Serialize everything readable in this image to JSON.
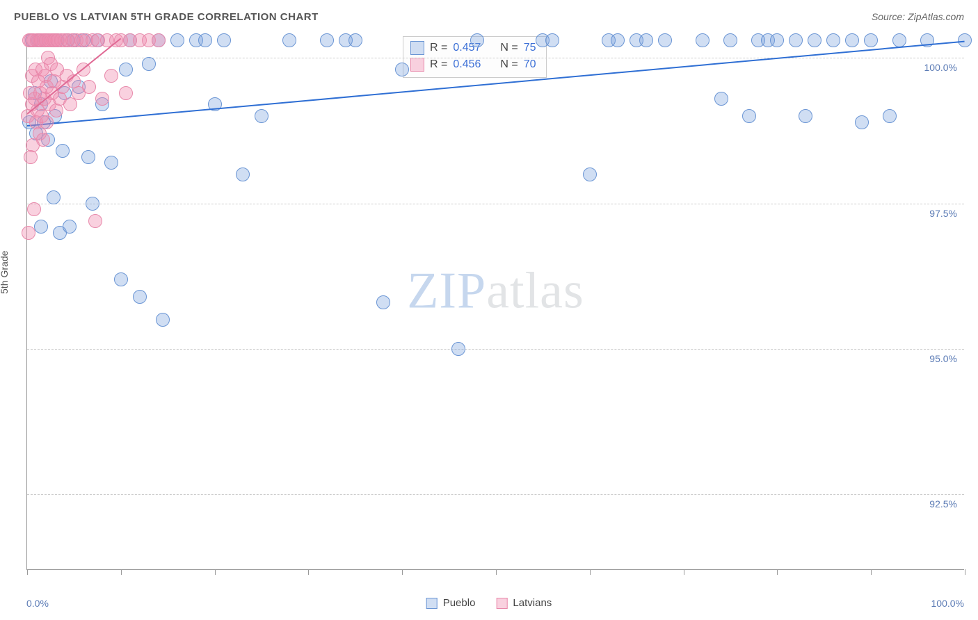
{
  "title": "PUEBLO VS LATVIAN 5TH GRADE CORRELATION CHART",
  "source": "Source: ZipAtlas.com",
  "ylabel": "5th Grade",
  "watermark_zip": "ZIP",
  "watermark_atlas": "atlas",
  "chart": {
    "type": "scatter",
    "background_color": "#ffffff",
    "grid_color": "#cccccc",
    "grid_dash": true,
    "axis_color": "#999999",
    "text_color": "#555555",
    "value_color": "#5b7bb5",
    "xlim": [
      0,
      100
    ],
    "ylim": [
      91.2,
      100.4
    ],
    "x_tick_positions": [
      0,
      10,
      20,
      30,
      40,
      50,
      60,
      70,
      80,
      90,
      100
    ],
    "x_min_label": "0.0%",
    "x_max_label": "100.0%",
    "y_ticks": [
      {
        "v": 92.5,
        "label": "92.5%"
      },
      {
        "v": 95.0,
        "label": "95.0%"
      },
      {
        "v": 97.5,
        "label": "97.5%"
      },
      {
        "v": 100.0,
        "label": "100.0%"
      }
    ],
    "series": [
      {
        "name": "Pueblo",
        "fill": "rgba(120,160,220,0.35)",
        "stroke": "#6a95d4",
        "marker_radius": 10,
        "trend": {
          "x1": 0,
          "y1": 98.85,
          "x2": 100,
          "y2": 100.3,
          "color": "#2f6fd4",
          "width": 2
        },
        "R": "0.457",
        "N": "75",
        "points": [
          [
            0.2,
            98.9
          ],
          [
            0.5,
            100.3
          ],
          [
            0.8,
            99.4
          ],
          [
            1.0,
            98.7
          ],
          [
            1.2,
            100.3
          ],
          [
            1.5,
            99.2
          ],
          [
            1.5,
            97.1
          ],
          [
            1.8,
            98.9
          ],
          [
            2.0,
            100.3
          ],
          [
            2.2,
            98.6
          ],
          [
            2.5,
            99.6
          ],
          [
            2.8,
            97.6
          ],
          [
            3.0,
            99.0
          ],
          [
            3.2,
            100.3
          ],
          [
            3.5,
            97.0
          ],
          [
            3.8,
            98.4
          ],
          [
            4.0,
            99.4
          ],
          [
            4.3,
            100.3
          ],
          [
            4.5,
            97.1
          ],
          [
            5.0,
            100.3
          ],
          [
            5.5,
            99.5
          ],
          [
            6.0,
            100.3
          ],
          [
            6.5,
            98.3
          ],
          [
            7.0,
            97.5
          ],
          [
            7.5,
            100.3
          ],
          [
            8.0,
            99.2
          ],
          [
            9.0,
            98.2
          ],
          [
            10.0,
            96.2
          ],
          [
            10.5,
            99.8
          ],
          [
            11.0,
            100.3
          ],
          [
            12.0,
            95.9
          ],
          [
            13.0,
            99.9
          ],
          [
            14.0,
            100.3
          ],
          [
            14.5,
            95.5
          ],
          [
            16.0,
            100.3
          ],
          [
            18.0,
            100.3
          ],
          [
            19.0,
            100.3
          ],
          [
            20.0,
            99.2
          ],
          [
            21.0,
            100.3
          ],
          [
            23.0,
            98.0
          ],
          [
            25.0,
            99.0
          ],
          [
            28.0,
            100.3
          ],
          [
            32.0,
            100.3
          ],
          [
            34.0,
            100.3
          ],
          [
            35.0,
            100.3
          ],
          [
            38.0,
            95.8
          ],
          [
            40.0,
            99.8
          ],
          [
            46.0,
            95.0
          ],
          [
            48.0,
            100.3
          ],
          [
            55.0,
            100.3
          ],
          [
            56.0,
            100.3
          ],
          [
            60.0,
            98.0
          ],
          [
            62.0,
            100.3
          ],
          [
            63.0,
            100.3
          ],
          [
            65.0,
            100.3
          ],
          [
            66.0,
            100.3
          ],
          [
            68.0,
            100.3
          ],
          [
            72.0,
            100.3
          ],
          [
            74.0,
            99.3
          ],
          [
            75.0,
            100.3
          ],
          [
            77.0,
            99.0
          ],
          [
            78.0,
            100.3
          ],
          [
            79.0,
            100.3
          ],
          [
            80.0,
            100.3
          ],
          [
            82.0,
            100.3
          ],
          [
            83.0,
            99.0
          ],
          [
            84.0,
            100.3
          ],
          [
            86.0,
            100.3
          ],
          [
            88.0,
            100.3
          ],
          [
            89.0,
            98.9
          ],
          [
            90.0,
            100.3
          ],
          [
            92.0,
            99.0
          ],
          [
            93.0,
            100.3
          ],
          [
            96.0,
            100.3
          ],
          [
            100.0,
            100.3
          ]
        ]
      },
      {
        "name": "Latvians",
        "fill": "rgba(240,140,175,0.40)",
        "stroke": "#e889ab",
        "marker_radius": 10,
        "trend": {
          "x1": 0,
          "y1": 99.05,
          "x2": 10,
          "y2": 100.35,
          "color": "#e06a95",
          "width": 2
        },
        "R": "0.456",
        "N": "70",
        "points": [
          [
            0.1,
            99.0
          ],
          [
            0.15,
            97.0
          ],
          [
            0.2,
            100.3
          ],
          [
            0.3,
            99.4
          ],
          [
            0.35,
            98.3
          ],
          [
            0.4,
            100.3
          ],
          [
            0.5,
            99.2
          ],
          [
            0.55,
            99.7
          ],
          [
            0.6,
            98.5
          ],
          [
            0.7,
            100.3
          ],
          [
            0.75,
            97.4
          ],
          [
            0.8,
            99.3
          ],
          [
            0.9,
            99.8
          ],
          [
            1.0,
            98.9
          ],
          [
            1.05,
            100.3
          ],
          [
            1.1,
            99.1
          ],
          [
            1.2,
            99.6
          ],
          [
            1.3,
            100.3
          ],
          [
            1.35,
            98.7
          ],
          [
            1.4,
            99.4
          ],
          [
            1.5,
            100.3
          ],
          [
            1.55,
            99.0
          ],
          [
            1.6,
            99.8
          ],
          [
            1.7,
            98.6
          ],
          [
            1.8,
            100.3
          ],
          [
            1.85,
            99.3
          ],
          [
            1.9,
            99.7
          ],
          [
            2.0,
            100.3
          ],
          [
            2.05,
            98.9
          ],
          [
            2.1,
            99.5
          ],
          [
            2.2,
            100.0
          ],
          [
            2.3,
            100.3
          ],
          [
            2.4,
            99.2
          ],
          [
            2.5,
            99.9
          ],
          [
            2.6,
            100.3
          ],
          [
            2.7,
            99.4
          ],
          [
            2.8,
            100.3
          ],
          [
            2.9,
            99.6
          ],
          [
            3.0,
            100.3
          ],
          [
            3.1,
            99.1
          ],
          [
            3.2,
            99.8
          ],
          [
            3.3,
            100.3
          ],
          [
            3.5,
            99.3
          ],
          [
            3.6,
            100.3
          ],
          [
            3.8,
            99.5
          ],
          [
            4.0,
            100.3
          ],
          [
            4.2,
            99.7
          ],
          [
            4.4,
            100.3
          ],
          [
            4.6,
            99.2
          ],
          [
            4.8,
            100.3
          ],
          [
            5.0,
            99.6
          ],
          [
            5.3,
            100.3
          ],
          [
            5.5,
            99.4
          ],
          [
            5.8,
            100.3
          ],
          [
            6.0,
            99.8
          ],
          [
            6.3,
            100.3
          ],
          [
            6.6,
            99.5
          ],
          [
            7.0,
            100.3
          ],
          [
            7.3,
            97.2
          ],
          [
            7.6,
            100.3
          ],
          [
            8.0,
            99.3
          ],
          [
            8.5,
            100.3
          ],
          [
            9.0,
            99.7
          ],
          [
            9.5,
            100.3
          ],
          [
            10.0,
            100.3
          ],
          [
            10.5,
            99.4
          ],
          [
            11.0,
            100.3
          ],
          [
            12.0,
            100.3
          ],
          [
            13.0,
            100.3
          ],
          [
            14.0,
            100.3
          ]
        ]
      }
    ],
    "legend_labels": {
      "r": "R =",
      "n": "N ="
    },
    "bottom_legend": [
      {
        "label": "Pueblo",
        "fill": "rgba(120,160,220,0.35)",
        "stroke": "#6a95d4"
      },
      {
        "label": "Latvians",
        "fill": "rgba(240,140,175,0.40)",
        "stroke": "#e889ab"
      }
    ]
  }
}
